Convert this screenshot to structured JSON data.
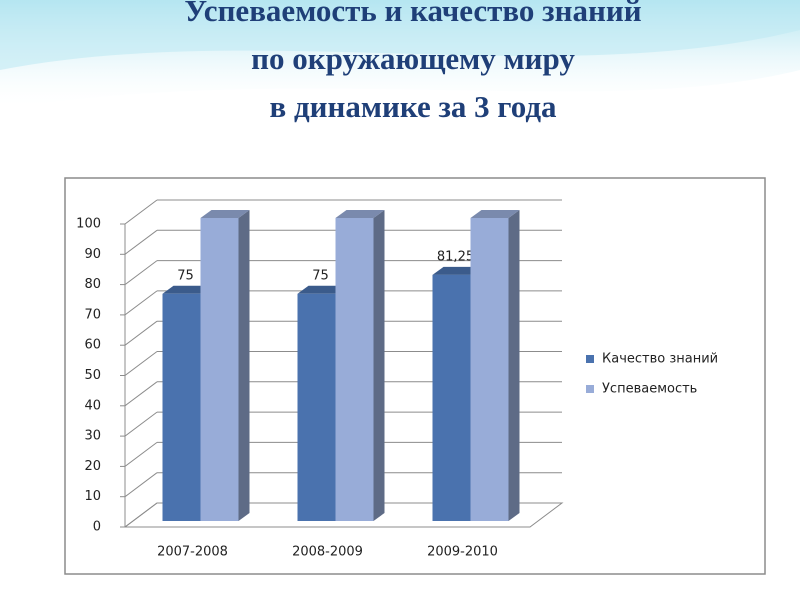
{
  "chart_data": {
    "type": "bar3d",
    "title": [
      "Успеваемость и качество знаний",
      "по окружающему миру",
      "в динамике за 3 года"
    ],
    "categories": [
      "2007-2008",
      "2008-2009",
      "2009-2010"
    ],
    "series": [
      {
        "name": "Качество знаний",
        "color": "#4a72ae",
        "values": [
          75,
          75,
          81.25
        ],
        "value_labels": [
          "75",
          "75",
          "81,25"
        ]
      },
      {
        "name": "Успеваемость",
        "color": "#98acd8",
        "values": [
          100,
          100,
          100
        ]
      }
    ],
    "ylim": [
      0,
      100
    ],
    "yticks": [
      0,
      10,
      20,
      30,
      40,
      50,
      60,
      70,
      80,
      90,
      100
    ],
    "grid": true,
    "legend": "right"
  }
}
